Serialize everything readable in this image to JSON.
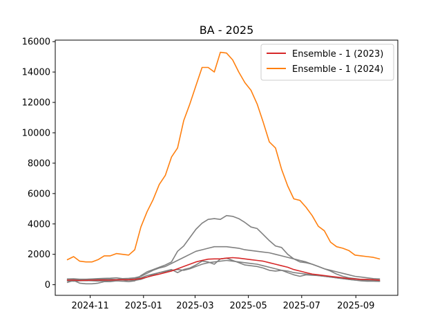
{
  "chart_data": {
    "type": "line",
    "title": "BA - 2025",
    "xlabel": "",
    "ylabel": "",
    "grid": false,
    "legend_placement": "top-right",
    "x_ticks": [
      "2024-11",
      "2025-01",
      "2025-03",
      "2025-05",
      "2025-07",
      "2025-09"
    ],
    "y_ticks": [
      0,
      2000,
      4000,
      6000,
      8000,
      10000,
      12000,
      14000,
      16000
    ],
    "xlim": [
      "2024-09-22",
      "2025-10-19"
    ],
    "ylim": [
      -700,
      16100
    ],
    "x": [
      "2024-10-06",
      "2024-10-13",
      "2024-10-20",
      "2024-10-27",
      "2024-11-03",
      "2024-11-10",
      "2024-11-17",
      "2024-11-24",
      "2024-12-01",
      "2024-12-08",
      "2024-12-15",
      "2024-12-22",
      "2024-12-29",
      "2025-01-05",
      "2025-01-12",
      "2025-01-19",
      "2025-01-26",
      "2025-02-02",
      "2025-02-09",
      "2025-02-16",
      "2025-02-23",
      "2025-03-02",
      "2025-03-09",
      "2025-03-16",
      "2025-03-23",
      "2025-03-30",
      "2025-04-06",
      "2025-04-13",
      "2025-04-20",
      "2025-04-27",
      "2025-05-04",
      "2025-05-11",
      "2025-05-18",
      "2025-05-25",
      "2025-06-01",
      "2025-06-08",
      "2025-06-15",
      "2025-06-22",
      "2025-06-29",
      "2025-07-06",
      "2025-07-13",
      "2025-07-20",
      "2025-07-27",
      "2025-08-03",
      "2025-08-10",
      "2025-08-17",
      "2025-08-24",
      "2025-08-31",
      "2025-09-07",
      "2025-09-14",
      "2025-09-21",
      "2025-09-28"
    ],
    "series": [
      {
        "name": "Ensemble - 1 (2023)",
        "color": "#d62728",
        "values": [
          300,
          300,
          280,
          290,
          300,
          310,
          310,
          300,
          320,
          330,
          330,
          350,
          400,
          500,
          600,
          700,
          800,
          900,
          1050,
          1200,
          1350,
          1500,
          1600,
          1680,
          1700,
          1700,
          1750,
          1780,
          1750,
          1700,
          1650,
          1600,
          1550,
          1450,
          1350,
          1250,
          1150,
          1000,
          900,
          800,
          700,
          650,
          600,
          550,
          500,
          450,
          400,
          380,
          350,
          350,
          330,
          300
        ]
      },
      {
        "name": "Ensemble - 1 (2024)",
        "color": "#ff7f0e",
        "values": [
          1650,
          1850,
          1550,
          1500,
          1500,
          1650,
          1900,
          1900,
          2050,
          2000,
          1950,
          2300,
          3800,
          4800,
          5600,
          6600,
          7200,
          8400,
          9000,
          10800,
          11900,
          13100,
          14300,
          14300,
          14000,
          15300,
          15250,
          14800,
          14000,
          13300,
          12800,
          11900,
          10700,
          9400,
          9000,
          7600,
          6500,
          5650,
          5550,
          5100,
          4550,
          3850,
          3550,
          2800,
          2500,
          2400,
          2250,
          1950,
          1900,
          1850,
          1800,
          1700
        ]
      },
      {
        "name": "",
        "color": "#808080",
        "values": [
          380,
          390,
          360,
          360,
          380,
          400,
          420,
          430,
          450,
          400,
          420,
          450,
          550,
          750,
          950,
          1100,
          1200,
          1400,
          1600,
          1800,
          2000,
          2200,
          2300,
          2400,
          2500,
          2500,
          2500,
          2450,
          2400,
          2300,
          2250,
          2200,
          2150,
          2100,
          2000,
          1900,
          1800,
          1700,
          1600,
          1500,
          1350,
          1200,
          1050,
          950,
          850,
          750,
          650,
          550,
          500,
          450,
          400,
          380
        ]
      },
      {
        "name": "",
        "color": "#808080",
        "values": [
          150,
          280,
          100,
          60,
          60,
          100,
          200,
          200,
          250,
          240,
          200,
          250,
          600,
          850,
          1000,
          1150,
          1300,
          1500,
          2200,
          2550,
          3100,
          3650,
          4050,
          4300,
          4350,
          4300,
          4550,
          4500,
          4350,
          4100,
          3800,
          3700,
          3300,
          2900,
          2550,
          2450,
          2000,
          1700,
          1500,
          1450,
          1350,
          1200,
          1050,
          900,
          700,
          550,
          450,
          400,
          350,
          300,
          280,
          250
        ]
      },
      {
        "name": "",
        "color": "#808080",
        "values": [
          250,
          230,
          260,
          270,
          260,
          240,
          260,
          280,
          250,
          240,
          300,
          280,
          350,
          500,
          650,
          800,
          850,
          950,
          1000,
          950,
          1050,
          1200,
          1350,
          1450,
          1500,
          1550,
          1600,
          1550,
          1500,
          1450,
          1400,
          1350,
          1250,
          1150,
          1050,
          950,
          900,
          800,
          750,
          700,
          650,
          600,
          550,
          500,
          450,
          400,
          350,
          300,
          280,
          260,
          250,
          240
        ]
      },
      {
        "name": "",
        "color": "#808080",
        "values": [
          300,
          310,
          320,
          330,
          340,
          360,
          380,
          360,
          340,
          380,
          400,
          420,
          450,
          600,
          700,
          800,
          900,
          1000,
          800,
          1000,
          1100,
          1300,
          1550,
          1500,
          1350,
          1700,
          1750,
          1600,
          1450,
          1300,
          1250,
          1200,
          1100,
          950,
          900,
          950,
          800,
          650,
          550,
          650,
          620,
          600,
          550,
          500,
          450,
          400,
          350,
          300,
          250,
          230,
          230,
          220
        ]
      }
    ]
  }
}
